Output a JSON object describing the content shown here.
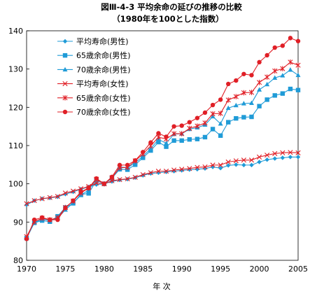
{
  "chart_data": {
    "type": "line",
    "title": "図Ⅲ-4-3 平均余命の延びの推移の比較",
    "subtitle": "（1980年を100とした指数）",
    "xlabel": "年 次",
    "ylabel": "",
    "xlim": [
      1970,
      2005
    ],
    "ylim": [
      80,
      140
    ],
    "x_ticks": [
      1970,
      1975,
      1980,
      1985,
      1990,
      1995,
      2000,
      2005
    ],
    "y_ticks": [
      80,
      90,
      100,
      110,
      120,
      130,
      140
    ],
    "grid": false,
    "legend_position": "top-left",
    "x": [
      1970,
      1971,
      1972,
      1973,
      1974,
      1975,
      1976,
      1977,
      1978,
      1979,
      1980,
      1981,
      1982,
      1983,
      1984,
      1985,
      1986,
      1987,
      1988,
      1989,
      1990,
      1991,
      1992,
      1993,
      1994,
      1995,
      1996,
      1997,
      1998,
      1999,
      2000,
      2001,
      2002,
      2003,
      2004,
      2005
    ],
    "series": [
      {
        "name": "平均寿命(男性)",
        "color": "#1f9bd7",
        "marker": "diamond",
        "values": [
          94.5,
          95.6,
          96.1,
          96.3,
          96.6,
          97.3,
          97.9,
          98.6,
          99.2,
          99.8,
          100.0,
          100.6,
          101.0,
          101.2,
          101.6,
          102.2,
          102.7,
          102.9,
          103.1,
          103.3,
          103.5,
          103.7,
          103.8,
          104.0,
          104.4,
          104.1,
          104.8,
          105.0,
          104.9,
          104.9,
          105.7,
          106.3,
          106.6,
          106.8,
          107.0,
          107.0
        ]
      },
      {
        "name": "65歳余命(男性)",
        "color": "#1f9bd7",
        "marker": "square",
        "values": [
          85.8,
          89.8,
          90.4,
          90.1,
          91.5,
          93.8,
          94.9,
          97.2,
          97.5,
          100.9,
          100.0,
          101.5,
          103.8,
          103.7,
          105.0,
          106.8,
          108.7,
          110.9,
          109.7,
          111.3,
          111.3,
          111.6,
          111.7,
          112.2,
          114.3,
          112.6,
          116.1,
          117.1,
          117.4,
          117.5,
          120.3,
          122.0,
          123.1,
          123.6,
          124.8,
          124.5
        ]
      },
      {
        "name": "70歳余命(男性)",
        "color": "#1f9bd7",
        "marker": "triangle",
        "values": [
          85.8,
          89.8,
          90.8,
          90.4,
          91.0,
          93.2,
          95.0,
          97.0,
          98.4,
          101.2,
          100.0,
          101.4,
          104.4,
          104.2,
          105.5,
          107.2,
          109.2,
          111.6,
          110.6,
          113.0,
          113.1,
          114.3,
          114.7,
          115.4,
          117.6,
          115.7,
          119.8,
          120.5,
          121.0,
          121.1,
          124.6,
          126.0,
          127.7,
          128.3,
          129.8,
          128.4
        ]
      },
      {
        "name": "平均寿命(女性)",
        "color": "#e01f26",
        "marker": "x",
        "values": [
          94.8,
          95.6,
          96.1,
          96.4,
          96.7,
          97.6,
          98.1,
          98.7,
          99.3,
          100.2,
          100.0,
          100.8,
          101.1,
          101.3,
          101.7,
          102.4,
          102.9,
          103.3,
          103.3,
          103.6,
          103.8,
          104.0,
          104.3,
          104.4,
          104.9,
          104.9,
          105.7,
          106.0,
          106.2,
          106.2,
          107.0,
          107.5,
          107.9,
          108.1,
          108.2,
          108.1
        ]
      },
      {
        "name": "65歳余命(女性)",
        "color": "#e01f26",
        "marker": "star",
        "values": [
          86.2,
          90.1,
          91.0,
          90.6,
          91.1,
          93.8,
          95.5,
          97.6,
          98.9,
          101.2,
          100.0,
          101.6,
          104.2,
          104.3,
          106.0,
          107.8,
          109.9,
          112.2,
          111.7,
          113.1,
          113.1,
          114.5,
          115.1,
          115.9,
          118.3,
          118.4,
          121.9,
          122.8,
          123.8,
          123.9,
          126.5,
          127.9,
          129.5,
          130.1,
          131.8,
          131.0
        ]
      },
      {
        "name": "70歳余命(女性)",
        "color": "#e01f26",
        "marker": "circle",
        "values": [
          85.6,
          90.6,
          91.2,
          90.6,
          90.6,
          93.7,
          95.6,
          97.9,
          98.9,
          101.4,
          100.0,
          101.8,
          104.9,
          104.9,
          106.1,
          108.3,
          110.8,
          113.2,
          112.3,
          115.0,
          115.2,
          116.1,
          117.2,
          118.6,
          120.6,
          122.0,
          126.1,
          127.0,
          128.7,
          128.4,
          131.8,
          133.6,
          135.6,
          136.1,
          138.1,
          137.3
        ]
      }
    ]
  }
}
